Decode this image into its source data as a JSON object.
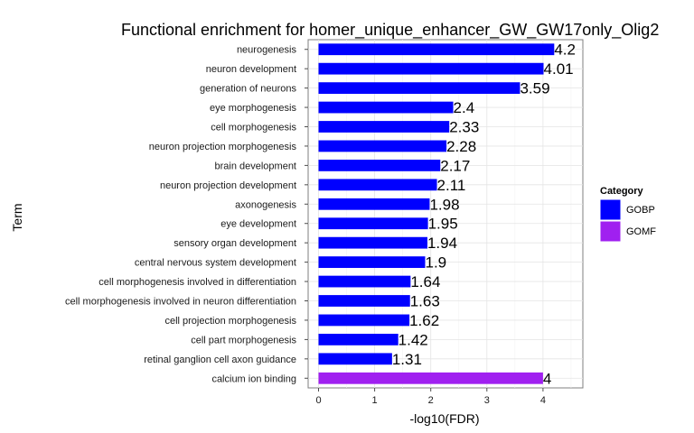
{
  "chart_data": {
    "type": "bar",
    "orientation": "horizontal",
    "title": "Functional enrichment for homer_unique_enhancer_GW_GW17only_Olig2",
    "xlabel": "-log10(FDR)",
    "ylabel": "Term",
    "xlim": [
      0,
      4.65
    ],
    "xticks": [
      0,
      1,
      2,
      3,
      4
    ],
    "grid": true,
    "legend": {
      "title": "Category",
      "placement": "right",
      "entries": [
        {
          "name": "GOBP",
          "color": "#0000ff"
        },
        {
          "name": "GOMF",
          "color": "#a020f0"
        }
      ]
    },
    "categories": [
      "neurogenesis",
      "neuron development",
      "generation of neurons",
      "eye morphogenesis",
      "cell morphogenesis",
      "neuron projection morphogenesis",
      "brain development",
      "neuron projection development",
      "axonogenesis",
      "eye development",
      "sensory organ development",
      "central nervous system development",
      "cell morphogenesis involved in differentiation",
      "cell morphogenesis involved in neuron differentiation",
      "cell projection morphogenesis",
      "cell part morphogenesis",
      "retinal ganglion cell axon guidance",
      "calcium ion binding"
    ],
    "values": [
      4.2,
      4.01,
      3.59,
      2.4,
      2.33,
      2.28,
      2.17,
      2.11,
      1.98,
      1.95,
      1.94,
      1.9,
      1.64,
      1.63,
      1.62,
      1.42,
      1.31,
      4
    ],
    "labels": [
      "4.2",
      "4.01",
      "3.59",
      "2.4",
      "2.33",
      "2.28",
      "2.17",
      "2.11",
      "1.98",
      "1.95",
      "1.94",
      "1.9",
      "1.64",
      "1.63",
      "1.62",
      "1.42",
      "1.31",
      "4"
    ],
    "groups": [
      "GOBP",
      "GOBP",
      "GOBP",
      "GOBP",
      "GOBP",
      "GOBP",
      "GOBP",
      "GOBP",
      "GOBP",
      "GOBP",
      "GOBP",
      "GOBP",
      "GOBP",
      "GOBP",
      "GOBP",
      "GOBP",
      "GOBP",
      "GOMF"
    ]
  }
}
